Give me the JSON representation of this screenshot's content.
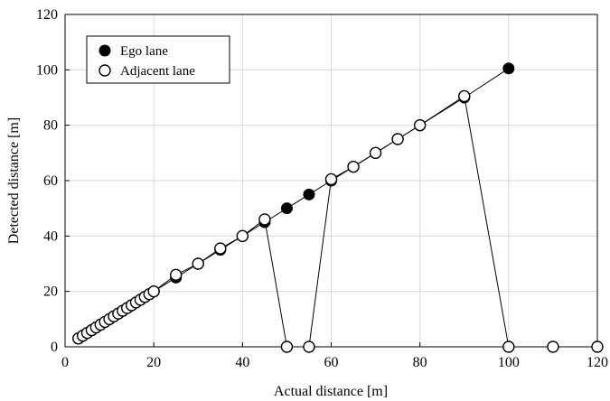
{
  "chart_data": {
    "type": "scatter",
    "xlabel": "Actual distance [m]",
    "ylabel": "Detected distance [m]",
    "xlim": [
      0,
      120
    ],
    "ylim": [
      0,
      120
    ],
    "x_ticks": [
      "0",
      "20",
      "40",
      "60",
      "80",
      "100",
      "120"
    ],
    "y_ticks": [
      "0",
      "20",
      "40",
      "60",
      "80",
      "100",
      "120"
    ],
    "grid": true,
    "legend_position": "top-left",
    "legend": [
      "Ego lane",
      "Adjacent lane"
    ],
    "series": [
      {
        "name": "Ego lane",
        "marker": "filled-circle",
        "color": "#000000",
        "x": [
          3,
          4,
          5,
          6,
          7,
          8,
          9,
          10,
          11,
          12,
          13,
          14,
          15,
          16,
          17,
          18,
          19,
          20,
          25,
          30,
          35,
          40,
          45,
          50,
          55,
          60,
          65,
          70,
          75,
          80,
          90,
          100
        ],
        "y": [
          3,
          4,
          5,
          6,
          7,
          8,
          9,
          10,
          11,
          12,
          13,
          14,
          15,
          16,
          17,
          18,
          19,
          20,
          25,
          30,
          35,
          40,
          45,
          50,
          55,
          60,
          65,
          70,
          75,
          80,
          90,
          100.5
        ]
      },
      {
        "name": "Adjacent lane",
        "marker": "open-circle",
        "color": "#000000",
        "x": [
          3,
          4,
          5,
          6,
          7,
          8,
          9,
          10,
          11,
          12,
          13,
          14,
          15,
          16,
          17,
          18,
          19,
          20,
          25,
          30,
          35,
          40,
          45,
          50,
          55,
          60,
          65,
          70,
          75,
          80,
          90,
          100,
          110,
          120
        ],
        "y": [
          3,
          4,
          5,
          6,
          7,
          8,
          9,
          10,
          11,
          12,
          13,
          14,
          15,
          16,
          17,
          18,
          19,
          20,
          26,
          30,
          35.5,
          40,
          46,
          0,
          0,
          60.5,
          65,
          70,
          75,
          80,
          90.5,
          0,
          0,
          0
        ]
      }
    ]
  }
}
